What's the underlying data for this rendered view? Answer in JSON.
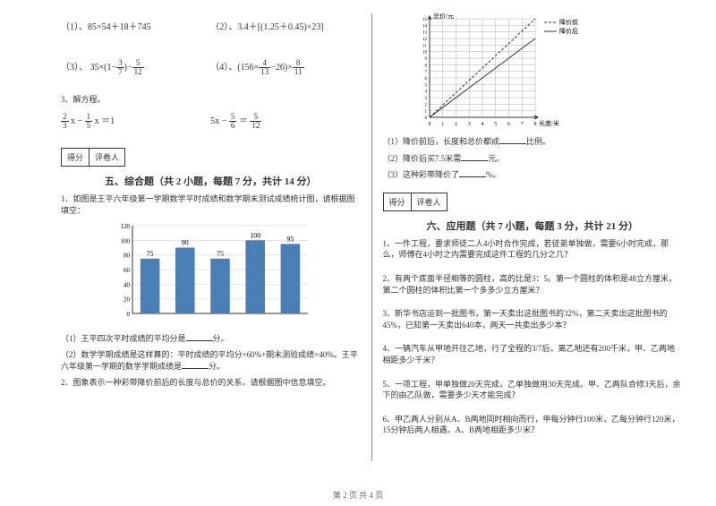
{
  "left": {
    "problems": {
      "p1": "（1）、85×54＋18＋745",
      "p2": "（2）、3.4＋[(1.25＋0.45)×23]",
      "p3_pre": "（3）、 35×(1−",
      "p3_f1n": "3",
      "p3_f1d": "7",
      "p3_mid": ")−",
      "p3_f2n": "5",
      "p3_f2d": "12",
      "p4_pre": "（4）、(156×",
      "p4_f1n": "4",
      "p4_f1d": "13",
      "p4_mid": "−26)×",
      "p4_f2n": "8",
      "p4_f2d": "11"
    },
    "solve_eq": "3、解方程。",
    "eq1_f1n": "2",
    "eq1_f1d": "3",
    "eq1_mid": " x − ",
    "eq1_f2n": "1",
    "eq1_f2d": "5",
    "eq1_end": " x ＝1",
    "eq2_pre": "5x − ",
    "eq2_f1n": "5",
    "eq2_f1d": "6",
    "eq2_mid": " ＝ ",
    "eq2_f2n": "5",
    "eq2_f2d": "12",
    "score_label1": "得分",
    "score_label2": "评卷人",
    "section5": "五、综合题（共 2 小题，每题 7 分，共计 14 分）",
    "q1": "1、如图是王平六年级第一学期数学平时成绩和数学期末测试成绩统计图，请根据图填空：",
    "bar_chart": {
      "categories": [
        "",
        "",
        "",
        "",
        ""
      ],
      "values": [
        75,
        90,
        75,
        100,
        95
      ],
      "labels": [
        "75",
        "90",
        "75",
        "100",
        "95"
      ],
      "y_max": 120,
      "y_step": 20,
      "bar_color": "#4a7fb5",
      "grid_color": "#cccccc",
      "bg": "#ffffff"
    },
    "q1_1": "（1）王平四次平时成绩的平均分是",
    "q1_1_end": "分。",
    "q1_2": "（2）数学学期成绩是这样算的：平时成绩的平均分×60%+期末测验成绩×40%。王平六年级第一学期的数学学期成绩是",
    "q1_2_end": "分。",
    "q2": "2、图象表示一种彩带降价前后的长度与总价的关系，请根据图中信息填空。"
  },
  "right": {
    "line_chart": {
      "x_label": "长度/米",
      "y_label": "总价/元",
      "legend1": "降价前",
      "legend2": "降价后",
      "x_ticks": [
        "0",
        "1",
        "2",
        "3",
        "4",
        "5",
        "6",
        "7",
        "8"
      ],
      "y_ticks": [
        "0",
        "1",
        "2",
        "3",
        "4",
        "5",
        "6",
        "7",
        "8",
        "9",
        "10",
        "11",
        "12",
        "13",
        "14",
        "15"
      ],
      "grid_color": "#999999",
      "line1_color": "#333333",
      "line2_color": "#333333",
      "series1": [
        [
          0,
          0
        ],
        [
          8,
          15
        ]
      ],
      "series2": [
        [
          0,
          0
        ],
        [
          8,
          12
        ]
      ]
    },
    "r1": "（1）降价前后，长度和总价都成",
    "r1_end": "比例。",
    "r2": "（2）降价后买7.5米需",
    "r2_end": "元。",
    "r3": "（3）这种彩带降价了",
    "r3_end": "%。",
    "score_label1": "得分",
    "score_label2": "评卷人",
    "section6": "六、应用题（共 7 小题，每题 3 分，共计 21 分）",
    "aq1": "1、一件工程，要求师徒二人4小时合作完成，若徒弟单独做，需要6小时完成，那么，师傅在4小时之内需要完成这件工程的几分之几？",
    "aq2": "2、有两个底面半径相等的圆柱，高的比是3：5。第一个圆柱的体积是48立方厘米，第二个圆柱的体积比第一个多多少立方厘米？",
    "aq3": "3、新华书店运到一批图书，第一天卖出这批图书的32%，第二天卖出这批图书的45%，已知第一天卖出640本，两天一共卖出多少本？",
    "aq4": "4、一辆汽车从甲地开往乙地，行了全程的3/7后，离乙地还有200千米，甲、乙两地相距多少千米？",
    "aq5": "5、一项工程，甲单独做20天完成，乙单独做用30天完成。甲、乙两队合修3天后，余下的由乙队做，需要多少天才能完成？",
    "aq6": "6、甲乙两人分别从A、B两地同时相向而行，甲每分钟行100米，乙每分钟行120米，15分钟后两人相遇。A、B两地相距多少米？"
  },
  "footer": "第 2 页 共 4 页"
}
